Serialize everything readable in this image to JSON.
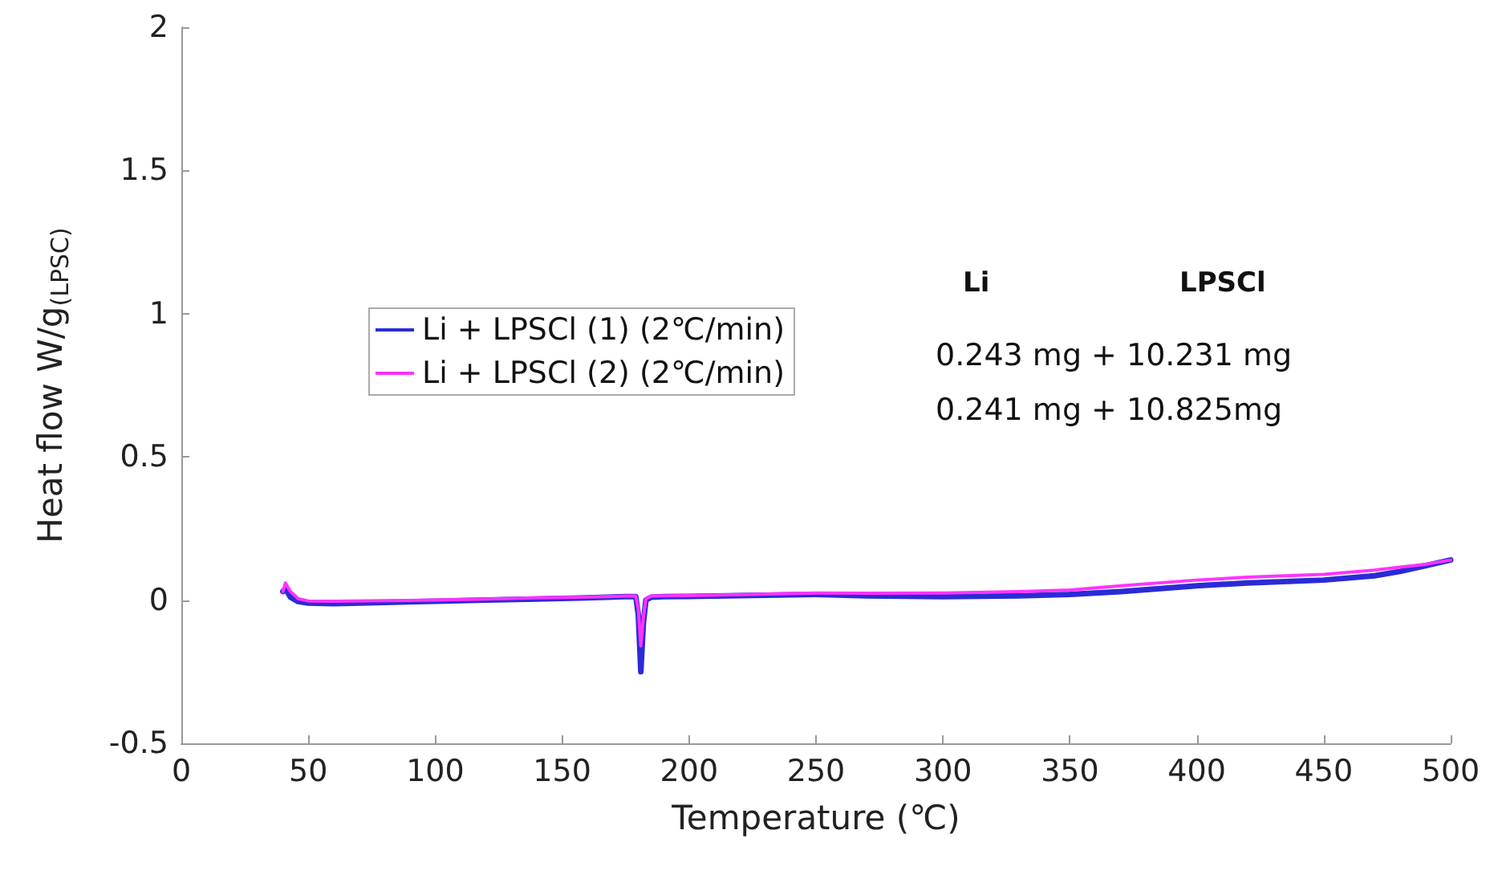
{
  "chart_data": {
    "type": "line",
    "xlabel": "Temperature (℃)",
    "ylabel": "Heat flow W/g$_{(LPSC)}$",
    "xlim": [
      0,
      500
    ],
    "xticks": [
      0,
      50,
      100,
      150,
      200,
      250,
      300,
      350,
      400,
      450,
      500
    ],
    "ylim": [
      -0.5,
      2
    ],
    "yticks": [
      -0.5,
      0,
      0.5,
      1,
      1.5,
      2
    ],
    "grid": false,
    "legend": "top left",
    "marker": "none",
    "line_style": "solid",
    "annotations": [
      "Li",
      "LPSCl",
      "0.243 mg + 10.231 mg",
      "0.241 mg + 10.825mg"
    ],
    "series": [
      {
        "name": "Li + LPSCl (1) (2℃/min)",
        "color": "#2b2bd6",
        "x": [
          40,
          41,
          43,
          46,
          50,
          60,
          80,
          100,
          120,
          140,
          160,
          175,
          179,
          180,
          181,
          182,
          183,
          185,
          190,
          200,
          220,
          250,
          270,
          300,
          330,
          350,
          370,
          400,
          420,
          450,
          470,
          480,
          490,
          500
        ],
        "values": [
          0.03,
          0.04,
          0.01,
          -0.005,
          -0.01,
          -0.012,
          -0.008,
          -0.004,
          0,
          0.004,
          0.008,
          0.012,
          0.012,
          -0.05,
          -0.25,
          -0.08,
          0.0,
          0.01,
          0.012,
          0.013,
          0.016,
          0.02,
          0.015,
          0.012,
          0.015,
          0.02,
          0.03,
          0.05,
          0.06,
          0.07,
          0.085,
          0.1,
          0.12,
          0.14
        ]
      },
      {
        "name": "Li + LPSCl (2) (2℃/min)",
        "color": "#ff33ff",
        "x": [
          40,
          41,
          43,
          46,
          50,
          60,
          80,
          100,
          120,
          140,
          160,
          175,
          179,
          180,
          181,
          182,
          183,
          185,
          190,
          200,
          220,
          250,
          270,
          300,
          330,
          350,
          370,
          400,
          420,
          450,
          470,
          480,
          490,
          500
        ],
        "values": [
          0.03,
          0.06,
          0.03,
          0.005,
          -0.003,
          -0.004,
          -0.002,
          0,
          0.004,
          0.008,
          0.011,
          0.014,
          0.014,
          -0.03,
          -0.16,
          -0.06,
          0.005,
          0.014,
          0.015,
          0.016,
          0.019,
          0.025,
          0.024,
          0.025,
          0.03,
          0.035,
          0.05,
          0.07,
          0.08,
          0.09,
          0.105,
          0.115,
          0.125,
          0.14
        ]
      }
    ]
  }
}
